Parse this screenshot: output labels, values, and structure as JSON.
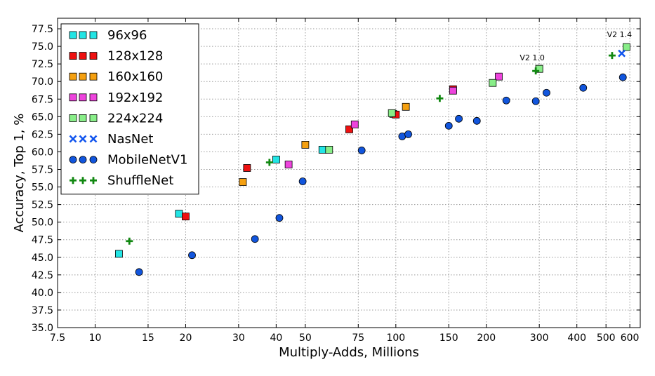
{
  "chart_data": {
    "type": "scatter",
    "title": "",
    "xlabel": "Multiply-Adds, Millions",
    "ylabel": "Accuracy, Top 1, %",
    "xscale": "log",
    "xlim": [
      7.5,
      650
    ],
    "ylim": [
      35.0,
      79.0
    ],
    "grid": true,
    "legend_position": "top-left",
    "x_ticks": [
      7.5,
      10,
      15,
      20,
      30,
      40,
      50,
      75,
      100,
      150,
      200,
      300,
      400,
      500,
      600
    ],
    "x_tick_labels": [
      "7.5",
      "10",
      "15",
      "20",
      "30",
      "40",
      "50",
      "75",
      "100",
      "150",
      "200",
      "300",
      "400",
      "500",
      "600"
    ],
    "y_ticks": [
      35.0,
      37.5,
      40.0,
      42.5,
      45.0,
      47.5,
      50.0,
      52.5,
      55.0,
      57.5,
      60.0,
      62.5,
      65.0,
      67.5,
      70.0,
      72.5,
      75.0,
      77.5
    ],
    "y_tick_labels": [
      "35.0",
      "37.5",
      "40.0",
      "42.5",
      "45.0",
      "47.5",
      "50.0",
      "52.5",
      "55.0",
      "57.5",
      "60.0",
      "62.5",
      "65.0",
      "67.5",
      "70.0",
      "72.5",
      "75.0",
      "77.5"
    ],
    "series": [
      {
        "name": "96x96",
        "marker": "square",
        "color": "#22e5e5",
        "points": [
          [
            12,
            45.5
          ],
          [
            19,
            51.2
          ],
          [
            40,
            58.9
          ],
          [
            57,
            60.3
          ],
          [
            98,
            65.4
          ],
          [
            300,
            71.8
          ]
        ]
      },
      {
        "name": "128x128",
        "marker": "square",
        "color": "#ee1111",
        "points": [
          [
            20,
            50.8
          ],
          [
            32,
            57.7
          ],
          [
            70,
            63.2
          ],
          [
            100,
            65.3
          ],
          [
            155,
            68.9
          ]
        ]
      },
      {
        "name": "160x160",
        "marker": "square",
        "color": "#f5a010",
        "points": [
          [
            31,
            55.7
          ],
          [
            50,
            61.0
          ],
          [
            108,
            66.4
          ]
        ]
      },
      {
        "name": "192x192",
        "marker": "square",
        "color": "#ee44dd",
        "points": [
          [
            44,
            58.2
          ],
          [
            73,
            63.9
          ],
          [
            155,
            68.7
          ],
          [
            220,
            70.7
          ]
        ]
      },
      {
        "name": "224x224",
        "marker": "square",
        "color": "#88ee88",
        "points": [
          [
            60,
            60.3
          ],
          [
            97,
            65.5
          ],
          [
            210,
            69.8
          ],
          [
            300,
            71.8
          ],
          [
            585,
            74.9
          ]
        ]
      },
      {
        "name": "NasNet",
        "marker": "x",
        "color": "#1155ee",
        "points": [
          [
            564,
            74.0
          ]
        ]
      },
      {
        "name": "MobileNetV1",
        "marker": "circle",
        "color": "#1155dd",
        "points": [
          [
            14,
            42.9
          ],
          [
            21,
            45.3
          ],
          [
            34,
            47.6
          ],
          [
            41,
            50.6
          ],
          [
            49,
            55.8
          ],
          [
            77,
            60.2
          ],
          [
            105,
            62.2
          ],
          [
            110,
            62.5
          ],
          [
            150,
            63.7
          ],
          [
            162,
            64.7
          ],
          [
            186,
            64.4
          ],
          [
            233,
            67.3
          ],
          [
            292,
            67.2
          ],
          [
            317,
            68.4
          ],
          [
            420,
            69.1
          ],
          [
            569,
            70.6
          ]
        ]
      },
      {
        "name": "ShuffleNet",
        "marker": "plus",
        "color": "#118811",
        "points": [
          [
            13,
            47.3
          ],
          [
            38,
            58.5
          ],
          [
            140,
            67.6
          ],
          [
            292,
            71.5
          ],
          [
            524,
            73.7
          ]
        ]
      }
    ],
    "annotations": [
      {
        "text": "V2 1.0",
        "x": 300,
        "y": 73.0
      },
      {
        "text": "V2 1.4",
        "x": 585,
        "y": 76.3
      }
    ]
  }
}
